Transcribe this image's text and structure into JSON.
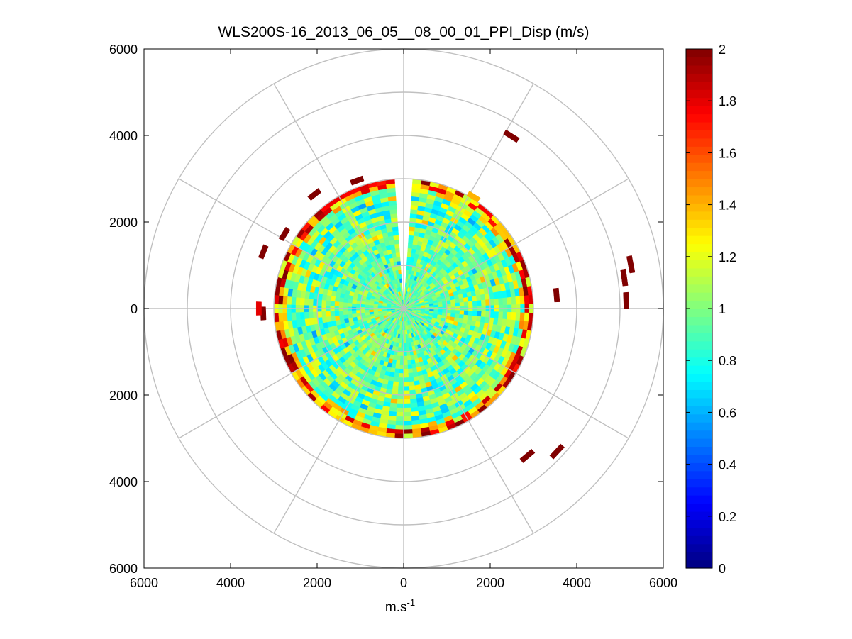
{
  "chart_data": {
    "type": "heatmap",
    "subtype": "polar-ppi",
    "title": "WLS200S-16_2013_06_05__08_00_01_PPI_Disp (m/s)",
    "xlabel": "m.s",
    "xlabel_superscript": "-1",
    "ylabel": "",
    "xlim": [
      -6000,
      6000
    ],
    "ylim": [
      -6000,
      6000
    ],
    "x_tick_values": [
      -6000,
      -4000,
      -2000,
      0,
      2000,
      4000,
      6000
    ],
    "x_tick_labels": [
      "6000",
      "4000",
      "2000",
      "0",
      "2000",
      "4000",
      "6000"
    ],
    "y_tick_values": [
      6000,
      4000,
      2000,
      0,
      -2000,
      -4000,
      -6000
    ],
    "y_tick_labels": [
      "6000",
      "4000",
      "2000",
      "0",
      "2000",
      "4000",
      "6000"
    ],
    "polar_grid": {
      "ring_radii": [
        1000,
        2000,
        3000,
        4000,
        5000,
        6000
      ],
      "spoke_angles_deg": [
        0,
        30,
        60,
        90,
        120,
        150,
        180,
        210,
        240,
        270,
        300,
        330
      ],
      "grid_color": "#c0c0c0"
    },
    "colorbar": {
      "min": 0,
      "max": 2,
      "tick_values": [
        0,
        0.2,
        0.4,
        0.6,
        0.8,
        1,
        1.2,
        1.4,
        1.6,
        1.8,
        2
      ],
      "tick_labels": [
        "0",
        "0.2",
        "0.4",
        "0.6",
        "0.8",
        "1",
        "1.2",
        "1.4",
        "1.6",
        "1.8",
        "2"
      ],
      "colormap": "jet"
    },
    "data_field": {
      "max_range_m": 3000,
      "gap_azimuth_deg": [
        -3,
        3
      ],
      "median_value": 0.95,
      "edge_value": 2.0
    },
    "outliers": [
      {
        "range": 4700,
        "az": 32,
        "value": 2.0
      },
      {
        "range": 5350,
        "az": 79,
        "value": 2.0
      },
      {
        "range": 5150,
        "az": 88,
        "value": 2.0
      },
      {
        "range": 5150,
        "az": 82,
        "value": 2.0
      },
      {
        "range": 3550,
        "az": 85,
        "value": 2.0
      },
      {
        "range": 4450,
        "az": 140,
        "value": 2.0
      },
      {
        "range": 4850,
        "az": 133,
        "value": 2.0
      },
      {
        "range": 3500,
        "az": 292,
        "value": 2.0
      },
      {
        "range": 3250,
        "az": 302,
        "value": 2.0
      },
      {
        "range": 3350,
        "az": 322,
        "value": 2.0
      },
      {
        "range": 3150,
        "az": 340,
        "value": 2.0
      },
      {
        "range": 3050,
        "az": 32,
        "value": 1.4
      },
      {
        "range": 3250,
        "az": 268,
        "value": 2.0
      },
      {
        "range": 3350,
        "az": 270,
        "value": 1.8
      }
    ]
  }
}
